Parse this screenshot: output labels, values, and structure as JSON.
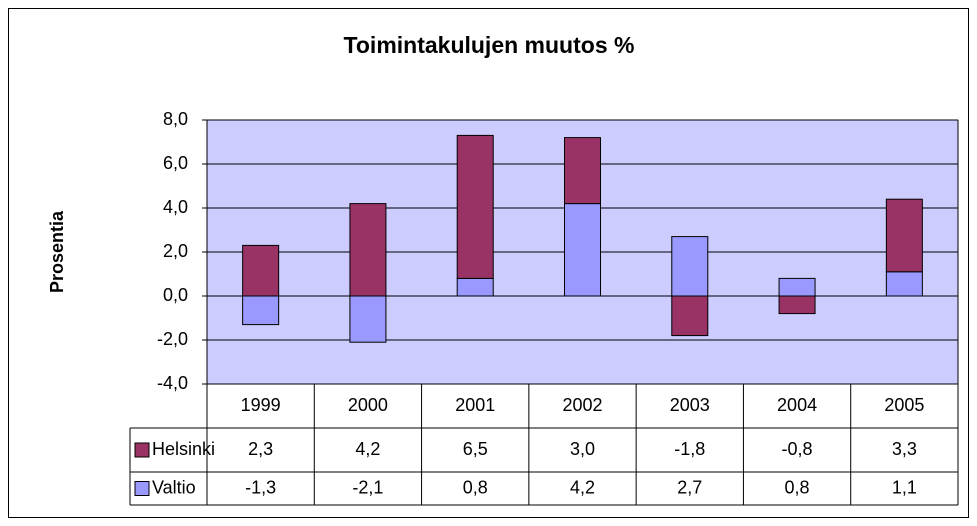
{
  "chart_data": {
    "type": "bar",
    "stacked": true,
    "title": "Toimintakulujen muutos %",
    "y_label": "Prosentia",
    "categories": [
      "1999",
      "2000",
      "2001",
      "2002",
      "2003",
      "2004",
      "2005"
    ],
    "series": [
      {
        "name": "Helsinki",
        "color": "#993366",
        "values": [
          2.3,
          4.2,
          6.5,
          3.0,
          -1.8,
          -0.8,
          3.3
        ],
        "value_labels": [
          "2,3",
          "4,2",
          "6,5",
          "3,0",
          "-1,8",
          "-0,8",
          "3,3"
        ]
      },
      {
        "name": "Valtio",
        "color": "#9999ff",
        "values": [
          -1.3,
          -2.1,
          0.8,
          4.2,
          2.7,
          0.8,
          1.1
        ],
        "value_labels": [
          "-1,3",
          "-2,1",
          "0,8",
          "4,2",
          "2,7",
          "0,8",
          "1,1"
        ]
      }
    ],
    "ylim": [
      -4,
      8
    ],
    "yticks": [
      {
        "value": -4,
        "label": "-4,0"
      },
      {
        "value": -2,
        "label": "-2,0"
      },
      {
        "value": 0,
        "label": "0,0"
      },
      {
        "value": 2,
        "label": "2,0"
      },
      {
        "value": 4,
        "label": "4,0"
      },
      {
        "value": 6,
        "label": "6,0"
      },
      {
        "value": 8,
        "label": "8,0"
      }
    ],
    "grid": true,
    "plot_background": "#ccccff"
  }
}
